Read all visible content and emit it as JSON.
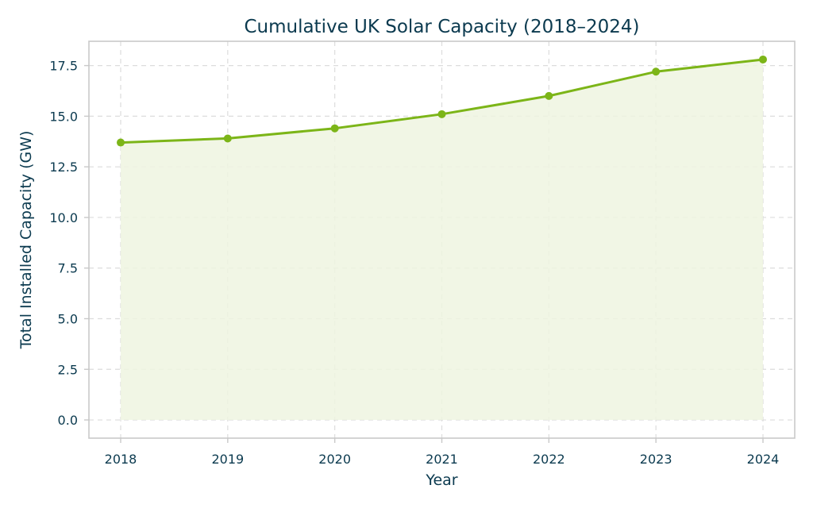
{
  "colors": {
    "line": "#7cb518",
    "fill": "#eef4e1",
    "text": "#0b3a4f"
  },
  "chart_data": {
    "type": "area",
    "title": "Cumulative UK Solar Capacity (2018–2024)",
    "xlabel": "Year",
    "ylabel": "Total Installed Capacity (GW)",
    "x": [
      "2018",
      "2019",
      "2020",
      "2021",
      "2022",
      "2023",
      "2024"
    ],
    "series": [
      {
        "values": [
          13.7,
          13.9,
          14.4,
          15.1,
          16.0,
          17.2,
          17.8
        ]
      }
    ],
    "y_ticks": [
      "0.0",
      "2.5",
      "5.0",
      "7.5",
      "10.0",
      "12.5",
      "15.0",
      "17.5"
    ],
    "ylim": [
      -0.9,
      18.7
    ],
    "grid": true,
    "legend": "none"
  }
}
